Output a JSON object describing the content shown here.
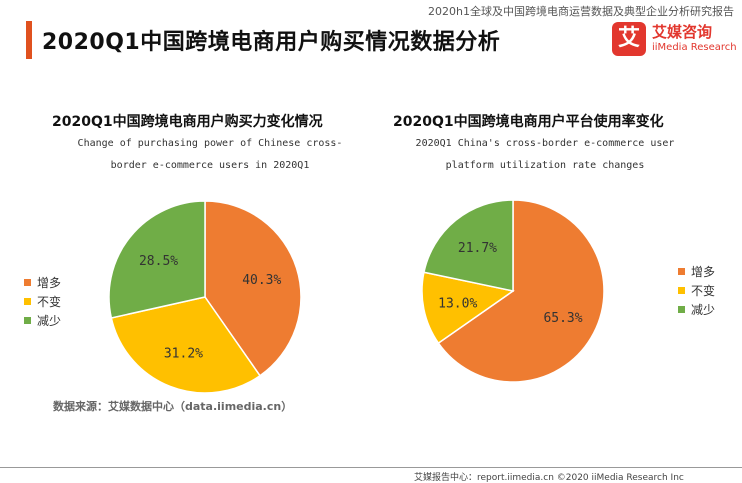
{
  "header": {
    "report_name": "2020h1全球及中国跨境电商运营数据及典型企业分析研究报告",
    "title": "2020Q1中国跨境电商用户购买情况数据分析",
    "brand_logo_char": "艾",
    "brand_name_cn": "艾媒咨询",
    "brand_name_en": "iiMedia Research"
  },
  "chart_data": [
    {
      "type": "pie",
      "title": "2020Q1中国跨境电商用户购买力变化情况",
      "subtitle_line1": "Change of purchasing power of Chinese cross-",
      "subtitle_line2": "border e-commerce users in 2020Q1",
      "slices": [
        {
          "label": "增多",
          "value": 40.3,
          "display": "40.3%",
          "color": "#ee7c31"
        },
        {
          "label": "不变",
          "value": 31.2,
          "display": "31.2%",
          "color": "#ffc000"
        },
        {
          "label": "减少",
          "value": 28.5,
          "display": "28.5%",
          "color": "#70ad47"
        }
      ],
      "legend": [
        "增多",
        "不变",
        "减少"
      ]
    },
    {
      "type": "pie",
      "title": "2020Q1中国跨境电商用户平台使用率变化",
      "subtitle_line1": "2020Q1 China's cross-border e-commerce user",
      "subtitle_line2": "platform utilization rate changes",
      "slices": [
        {
          "label": "增多",
          "value": 65.3,
          "display": "65.3%",
          "color": "#ee7c31"
        },
        {
          "label": "不变",
          "value": 13.0,
          "display": "13.0%",
          "color": "#ffc000"
        },
        {
          "label": "减少",
          "value": 21.7,
          "display": "21.7%",
          "color": "#70ad47"
        }
      ],
      "legend": [
        "增多",
        "不变",
        "减少"
      ]
    }
  ],
  "source_note": "数据来源：艾媒数据中心（data.iimedia.cn）",
  "footer": "艾媒报告中心：report.iimedia.cn ©2020  iiMedia Research Inc"
}
